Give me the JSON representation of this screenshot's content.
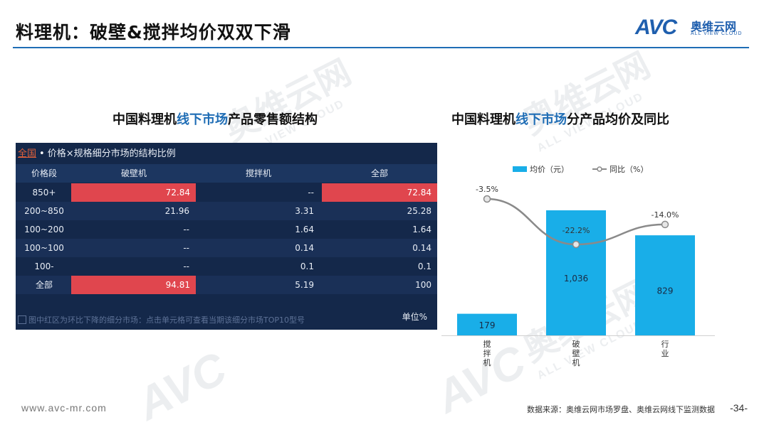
{
  "header": {
    "title": "料理机：破壁&搅拌均价双双下滑",
    "logo_avc": "AVC",
    "logo_cn": "奥维云网",
    "logo_en": "ALL VIEW CLOUD"
  },
  "watermark": {
    "cn": "奥维云网",
    "avc": "AVC",
    "en": "ALL VIEW CLOUD"
  },
  "left": {
    "title_pre": "中国料理机",
    "title_hl": "线下市场",
    "title_post": "产品零售额结构",
    "panel": {
      "scope": "全国",
      "dot": "•",
      "caption": "价格×规格细分市场的结构比例",
      "columns": [
        "价格段",
        "破壁机",
        "搅拌机",
        "全部"
      ],
      "rows": [
        [
          "850+",
          "72.84",
          "--",
          "72.84"
        ],
        [
          "200~850",
          "21.96",
          "3.31",
          "25.28"
        ],
        [
          "100~200",
          "--",
          "1.64",
          "1.64"
        ],
        [
          "100~100",
          "--",
          "0.14",
          "0.14"
        ],
        [
          "100-",
          "--",
          "0.1",
          "0.1"
        ],
        [
          "全部",
          "94.81",
          "5.19",
          "100"
        ]
      ],
      "note": "图中红区为环比下降的细分市场：点击单元格可查看当期该细分市场TOP10型号",
      "unit": "单位%",
      "highlight_color": "#e0464e"
    }
  },
  "right": {
    "title_pre": "中国料理机",
    "title_hl": "线下市场",
    "title_post": "分产品均价及同比"
  },
  "chart_data": {
    "type": "bar",
    "categories": [
      "搅拌机",
      "破壁机",
      "行业"
    ],
    "series": [
      {
        "name": "均价（元）",
        "type": "bar",
        "values": [
          179,
          1036,
          829
        ],
        "labels": [
          "179",
          "1,036",
          "829"
        ],
        "color": "#19aee8"
      },
      {
        "name": "同比（%）",
        "type": "line",
        "values": [
          -3.5,
          -22.2,
          -14.0
        ],
        "labels": [
          "-3.5%",
          "-22.2%",
          "-14.0%"
        ],
        "color": "#8a8a8a"
      }
    ],
    "legend": "top",
    "grid": false
  },
  "footer": {
    "url": "www.avc-mr.com",
    "source": "数据来源：奥维云网市场罗盘、奥维云网线下监测数据",
    "page": "-34-"
  }
}
